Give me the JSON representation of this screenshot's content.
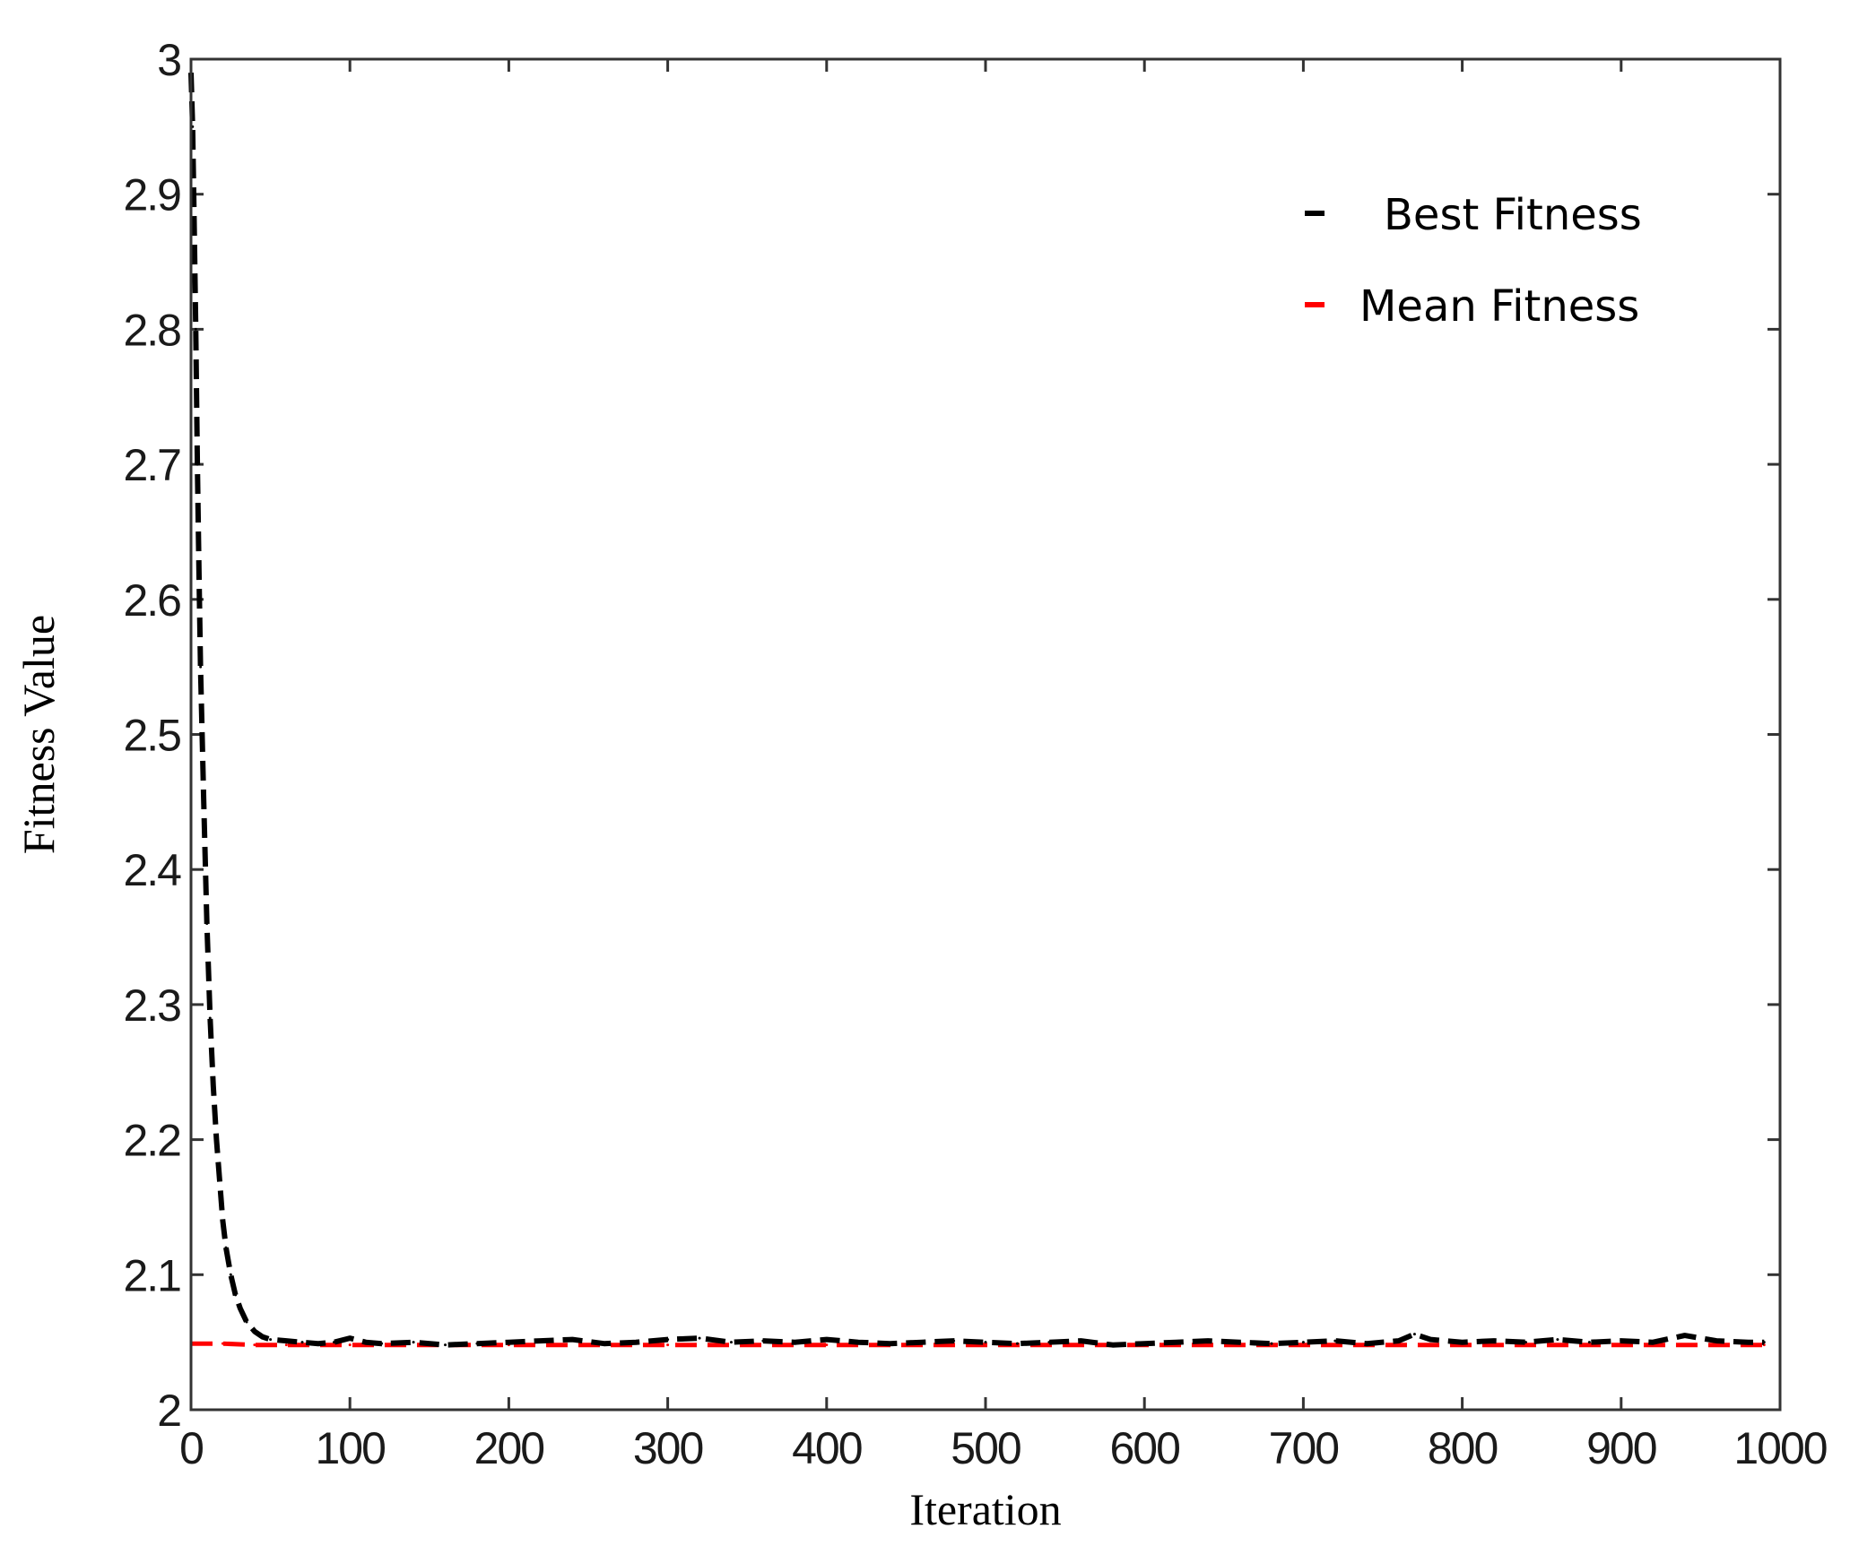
{
  "chart_data": {
    "type": "line",
    "xlabel": "Iteration",
    "ylabel": "Fitness Value",
    "xlim": [
      0,
      1000
    ],
    "ylim": [
      2,
      3
    ],
    "xticks": [
      "0",
      "100",
      "200",
      "300",
      "400",
      "500",
      "600",
      "700",
      "800",
      "900",
      "1000"
    ],
    "yticks": [
      "2",
      "2.1",
      "2.2",
      "2.3",
      "2.4",
      "2.5",
      "2.6",
      "2.7",
      "2.8",
      "2.9",
      "3"
    ],
    "grid": false,
    "legend_position": "top-right",
    "series": [
      {
        "name": "Best Fitness",
        "color": "#000000",
        "style": "dashed",
        "x": [
          0,
          1,
          2,
          3,
          4,
          5,
          6,
          8,
          10,
          12,
          14,
          16,
          18,
          20,
          22,
          25,
          28,
          31,
          35,
          40,
          45,
          50,
          60,
          70,
          80,
          90,
          100,
          110,
          120,
          140,
          160,
          180,
          200,
          220,
          240,
          260,
          280,
          300,
          320,
          340,
          360,
          380,
          400,
          420,
          440,
          460,
          480,
          500,
          520,
          540,
          560,
          580,
          600,
          620,
          640,
          660,
          680,
          700,
          720,
          740,
          760,
          770,
          780,
          800,
          820,
          840,
          860,
          880,
          900,
          920,
          940,
          960,
          980,
          990
        ],
        "y": [
          2.99,
          2.95,
          2.88,
          2.8,
          2.7,
          2.62,
          2.55,
          2.45,
          2.36,
          2.29,
          2.24,
          2.2,
          2.17,
          2.14,
          2.12,
          2.1,
          2.085,
          2.075,
          2.065,
          2.058,
          2.054,
          2.052,
          2.051,
          2.05,
          2.049,
          2.05,
          2.053,
          2.05,
          2.049,
          2.05,
          2.048,
          2.049,
          2.05,
          2.051,
          2.052,
          2.049,
          2.05,
          2.052,
          2.053,
          2.05,
          2.051,
          2.05,
          2.052,
          2.05,
          2.049,
          2.05,
          2.051,
          2.05,
          2.049,
          2.05,
          2.051,
          2.048,
          2.049,
          2.05,
          2.051,
          2.05,
          2.049,
          2.05,
          2.051,
          2.049,
          2.051,
          2.056,
          2.052,
          2.05,
          2.051,
          2.05,
          2.052,
          2.05,
          2.051,
          2.05,
          2.055,
          2.051,
          2.05,
          2.05
        ]
      },
      {
        "name": "Mean Fitness",
        "color": "#ff0000",
        "style": "dashed",
        "x": [
          0,
          20,
          40,
          60,
          100,
          200,
          300,
          400,
          500,
          600,
          700,
          800,
          900,
          990
        ],
        "y": [
          2.049,
          2.049,
          2.048,
          2.048,
          2.048,
          2.048,
          2.048,
          2.048,
          2.048,
          2.048,
          2.048,
          2.048,
          2.048,
          2.048
        ]
      }
    ]
  }
}
